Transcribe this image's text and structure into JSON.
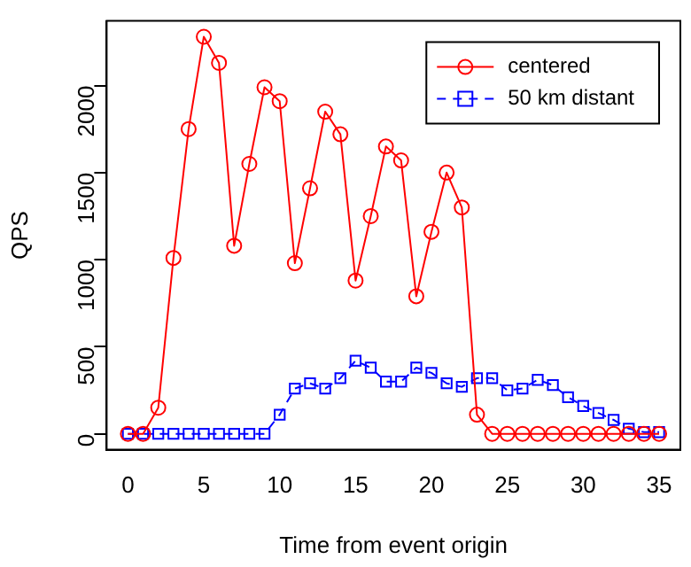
{
  "chart_data": {
    "type": "line",
    "xlabel": "Time from event origin",
    "ylabel": "QPS",
    "x": [
      0,
      1,
      2,
      3,
      4,
      5,
      6,
      7,
      8,
      9,
      10,
      11,
      12,
      13,
      14,
      15,
      16,
      17,
      18,
      19,
      20,
      21,
      22,
      23,
      24,
      25,
      26,
      27,
      28,
      29,
      30,
      31,
      32,
      33,
      34,
      35
    ],
    "xlim": [
      -1.4,
      36.4
    ],
    "xticks": [
      0,
      5,
      10,
      15,
      20,
      25,
      30,
      35
    ],
    "ylim": [
      -91,
      2371
    ],
    "yticks": [
      0,
      500,
      1000,
      1500,
      2000
    ],
    "grid": false,
    "legend": "top right",
    "series": [
      {
        "name": "centered",
        "color": "#ff0000",
        "marker": "circle",
        "line_style": "solid",
        "values": [
          0,
          0,
          150,
          1010,
          1750,
          2280,
          2130,
          1080,
          1550,
          1990,
          1910,
          980,
          1410,
          1850,
          1720,
          880,
          1250,
          1650,
          1570,
          790,
          1160,
          1500,
          1300,
          110,
          0,
          0,
          0,
          0,
          0,
          0,
          0,
          0,
          0,
          0,
          0,
          0
        ]
      },
      {
        "name": "50 km distant",
        "color": "#0000ff",
        "marker": "square",
        "line_style": "dashed",
        "values": [
          0,
          0,
          0,
          0,
          0,
          0,
          0,
          0,
          0,
          0,
          110,
          260,
          290,
          260,
          320,
          420,
          380,
          300,
          300,
          380,
          350,
          290,
          270,
          320,
          320,
          250,
          260,
          310,
          280,
          210,
          160,
          120,
          80,
          30,
          10,
          10
        ]
      }
    ]
  }
}
